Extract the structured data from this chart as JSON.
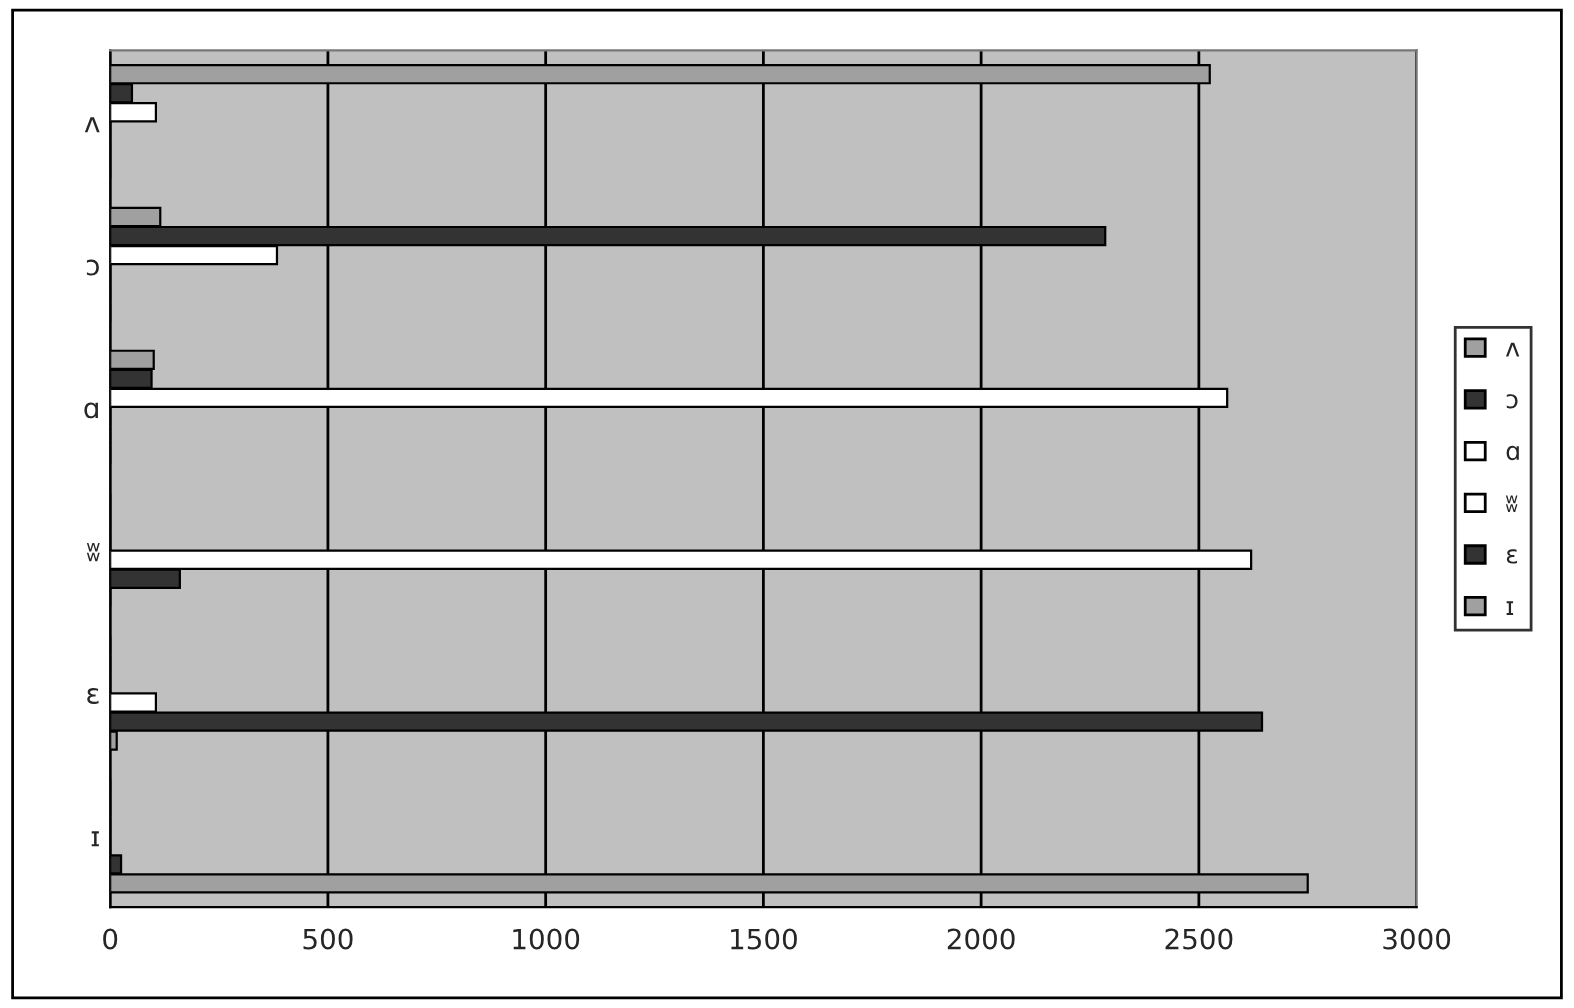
{
  "chart_data": {
    "type": "bar",
    "orientation": "horizontal",
    "categories": [
      "ʌ",
      "ɔ",
      "ɑ",
      "ʬ",
      "ɛ",
      "ɪ"
    ],
    "series": [
      {
        "name": "ʌ",
        "color": "#a0a0a0",
        "values": [
          2525,
          115,
          100,
          0,
          0,
          0
        ]
      },
      {
        "name": "ɔ",
        "color": "#333333",
        "values": [
          50,
          2285,
          95,
          0,
          null,
          0
        ]
      },
      {
        "name": "ɑ",
        "color": "#ffffff",
        "values": [
          105,
          383,
          2565,
          null,
          null,
          0
        ]
      },
      {
        "name": "ʬ",
        "color": "#ffffff",
        "values": [
          0,
          0,
          null,
          2620,
          105,
          0
        ]
      },
      {
        "name": "ɛ",
        "color": "#333333",
        "values": [
          0,
          0,
          0,
          160,
          2645,
          25
        ]
      },
      {
        "name": "ɪ",
        "color": "#a0a0a0",
        "values": [
          0,
          0,
          0,
          0,
          15,
          2750
        ]
      }
    ],
    "xlim": [
      0,
      3000
    ],
    "xticks": [
      0,
      500,
      1000,
      1500,
      2000,
      2500,
      3000
    ],
    "grid": "x",
    "legend": "right"
  }
}
